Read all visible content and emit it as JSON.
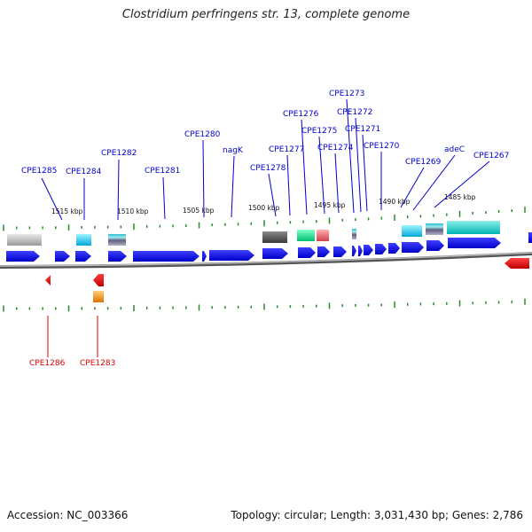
{
  "header": {
    "title": "Clostridium perfringens str. 13, complete genome"
  },
  "footer": {
    "accession": "Accession: NC_003366",
    "summary": "Topology: circular; Length: 3,031,430 bp; Genes: 2,786"
  },
  "scale": {
    "labels": [
      "1515 kbp",
      "1510 kbp",
      "1505 kbp",
      "1500 kbp",
      "1495 kbp",
      "1490 kbp",
      "1485 kbp"
    ]
  },
  "genes": {
    "forward": [
      "CPE1285",
      "CPE1284",
      "CPE1282",
      "CPE1281",
      "CPE1280",
      "nagK",
      "CPE1278",
      "CPE1277",
      "CPE1276",
      "CPE1275",
      "CPE1274",
      "CPE1273",
      "CPE1272",
      "CPE1271",
      "CPE1270",
      "CPE1269",
      "adeC",
      "CPE1267"
    ],
    "reverse": [
      "CPE1286",
      "CPE1283"
    ]
  },
  "colors": {
    "forward_gene": "#0000ee",
    "reverse_gene": "#ee0000",
    "tick": "#2a8a2a",
    "backbone": "#888888"
  }
}
